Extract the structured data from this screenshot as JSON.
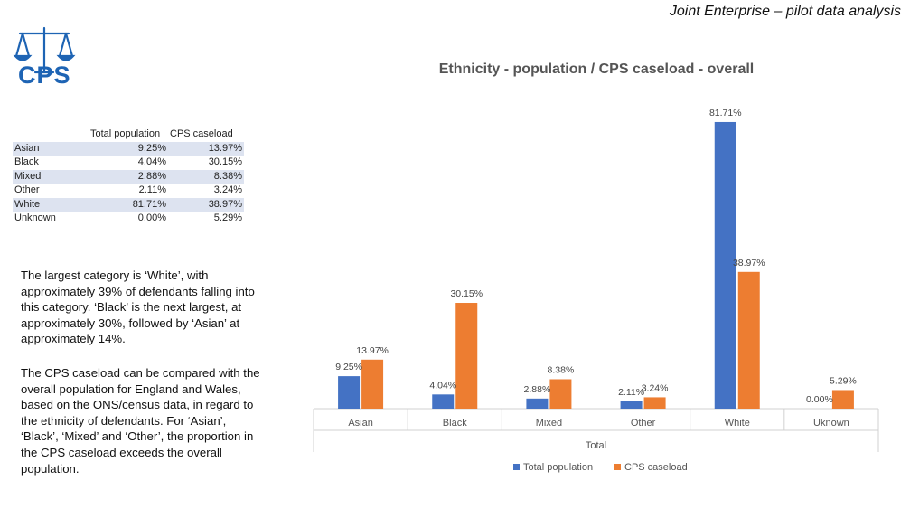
{
  "header": {
    "title": "Joint Enterprise – pilot data analysis"
  },
  "logo": {
    "text": "CPS"
  },
  "table": {
    "headers": [
      "",
      "Total population",
      "CPS caseload"
    ],
    "rows": [
      [
        "Asian",
        "9.25%",
        "13.97%"
      ],
      [
        "Black",
        "4.04%",
        "30.15%"
      ],
      [
        "Mixed",
        "2.88%",
        "8.38%"
      ],
      [
        "Other",
        "2.11%",
        "3.24%"
      ],
      [
        "White",
        "81.71%",
        "38.97%"
      ],
      [
        "Unknown",
        "0.00%",
        "5.29%"
      ]
    ]
  },
  "text": {
    "para1": "The largest category is ‘White’, with approximately 39% of defendants falling into this category.  ‘Black’ is the next largest, at approximately 30%, followed by ‘Asian’ at approximately 14%.",
    "para2": "The CPS caseload can be compared with the overall population for England and Wales, based on the ONS/census data, in regard to the ethnicity of defendants.  For ‘Asian’, ‘Black’, ‘Mixed’ and ‘Other’, the proportion in the CPS caseload exceeds the overall population."
  },
  "chart_data": {
    "type": "bar",
    "title": "Ethnicity - population / CPS caseload - overall",
    "categories": [
      "Asian",
      "Black",
      "Mixed",
      "Other",
      "White",
      "Uknown"
    ],
    "xlabel": "Total",
    "ylabel": "",
    "ylim": [
      0,
      85
    ],
    "series": [
      {
        "name": "Total population",
        "values": [
          9.25,
          4.04,
          2.88,
          2.11,
          81.71,
          0.0
        ],
        "labels": [
          "9.25%",
          "4.04%",
          "2.88%",
          "2.11%",
          "81.71%",
          "0.00%"
        ],
        "color": "#4472c4"
      },
      {
        "name": "CPS caseload",
        "values": [
          13.97,
          30.15,
          8.38,
          3.24,
          38.97,
          5.29
        ],
        "labels": [
          "13.97%",
          "30.15%",
          "8.38%",
          "3.24%",
          "38.97%",
          "5.29%"
        ],
        "color": "#ed7d31"
      }
    ],
    "legend": "bottom",
    "grid": false
  },
  "colors": {
    "logo": "#1e64b4",
    "table_band": "#dde3f0"
  }
}
